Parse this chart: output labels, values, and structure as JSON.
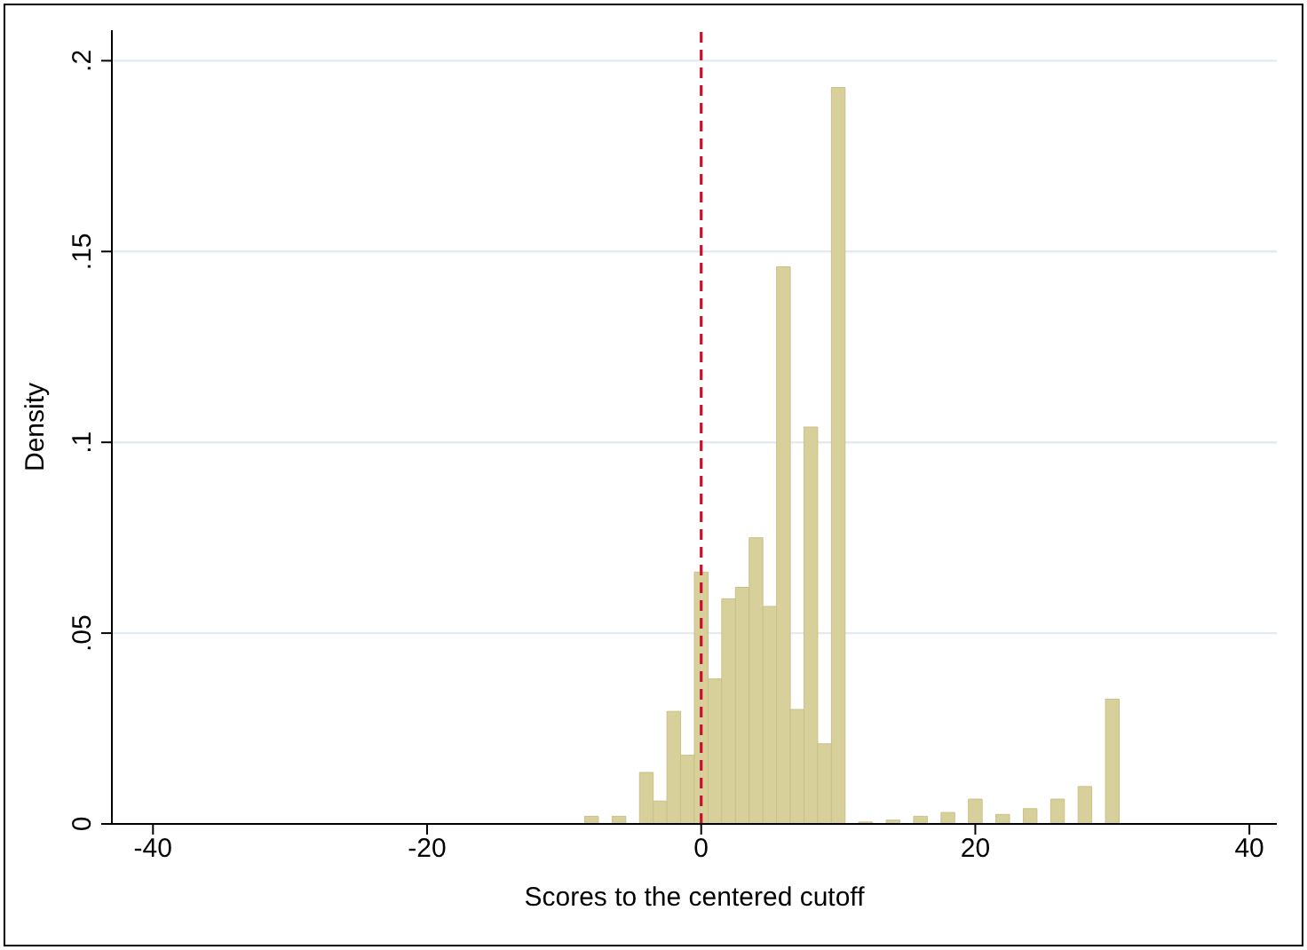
{
  "chart_data": {
    "type": "histogram",
    "xlabel": "Scores to the centered cutoff",
    "ylabel": "Density",
    "bins": [
      -8.5,
      -7.5,
      -6.5,
      -5.5,
      -4.5,
      -3.5,
      -2.5,
      -1.5,
      -0.5,
      0.5,
      1.5,
      2.5,
      3.5,
      4.5,
      5.5,
      6.5,
      7.5,
      8.5,
      9.5,
      10.5,
      11.5,
      12.5,
      13.5,
      14.5,
      15.5,
      16.5,
      17.5,
      18.5,
      19.5,
      20.5,
      21.5,
      22.5,
      23.5,
      24.5,
      25.5,
      26.5,
      27.5,
      28.5,
      29.5,
      30.5
    ],
    "values": [
      0.002,
      0,
      0.002,
      0,
      0.0135,
      0.006,
      0.0295,
      0.018,
      0.066,
      0.038,
      0.059,
      0.062,
      0.075,
      0.057,
      0.146,
      0.03,
      0.104,
      0.021,
      0.193,
      0,
      0.0005,
      0,
      0.001,
      0,
      0.002,
      0,
      0.003,
      0,
      0.0065,
      0,
      0.0025,
      0,
      0.004,
      0,
      0.0065,
      0,
      0.0098,
      0,
      0.0327
    ],
    "color": "#d8d09a",
    "xlim": [
      -43,
      42
    ],
    "xticks": [
      -40,
      -20,
      0,
      20,
      40
    ],
    "ylim": [
      0,
      0.208
    ],
    "yticks": [
      {
        "value": 0,
        "label": "0"
      },
      {
        "value": 0.05,
        "label": ".05"
      },
      {
        "value": 0.1,
        "label": ".1"
      },
      {
        "value": 0.15,
        "label": ".15"
      },
      {
        "value": 0.2,
        "label": ".2"
      }
    ],
    "grid": "y",
    "ref_lines": [
      {
        "axis": "x",
        "value": 0,
        "color": "#c8102e",
        "line_style": "dashed"
      }
    ]
  }
}
